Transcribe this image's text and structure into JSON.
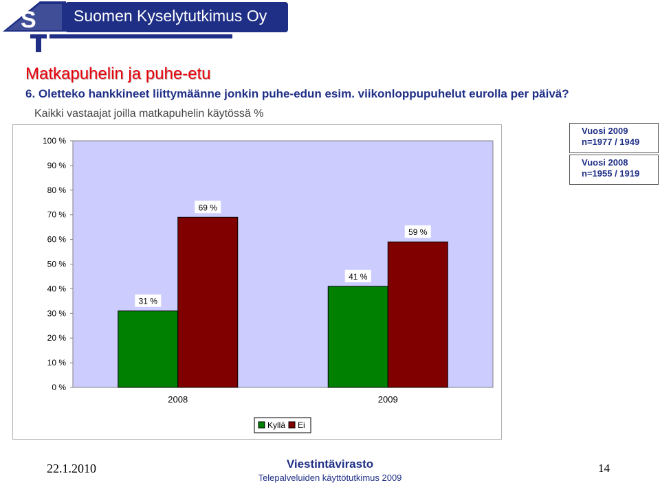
{
  "header": {
    "brand_name": "Suomen Kyselytutkimus Oy",
    "logo_letters": "S",
    "logo_accent": "T",
    "brand_color": "#1f2f86"
  },
  "slide": {
    "title": "Matkapuhelin ja puhe-etu",
    "question": "6. Oletteko hankkineet liittymäänne jonkin puhe-edun esim. viikonloppupuhelut eurolla per päivä?",
    "subtitle": "Kaikki vastaajat joilla matkapuhelin käytössä %"
  },
  "notes": [
    {
      "line1": "Vuosi 2009",
      "line2": "n=1977 / 1949"
    },
    {
      "line1": "Vuosi 2008",
      "line2": "n=1955 / 1919"
    }
  ],
  "chart_data": {
    "type": "bar",
    "categories": [
      "2008",
      "2009"
    ],
    "series": [
      {
        "name": "Kyllä",
        "values": [
          31,
          41
        ],
        "color": "#008000"
      },
      {
        "name": "Ei",
        "values": [
          69,
          59
        ],
        "color": "#800000"
      }
    ],
    "data_labels": [
      [
        "31 %",
        "41 %"
      ],
      [
        "69 %",
        "59 %"
      ]
    ],
    "ylim": [
      0,
      100
    ],
    "yticks": [
      "0 %",
      "10 %",
      "20 %",
      "30 %",
      "40 %",
      "50 %",
      "60 %",
      "70 %",
      "80 %",
      "90 %",
      "100 %"
    ],
    "grid": false,
    "plot_background": "#ccccff",
    "legend_position": "bottom"
  },
  "footer": {
    "date": "22.1.2010",
    "org": "Viestintävirasto",
    "subtitle": "Telepalveluiden käyttötutkimus 2009",
    "page": "14"
  }
}
